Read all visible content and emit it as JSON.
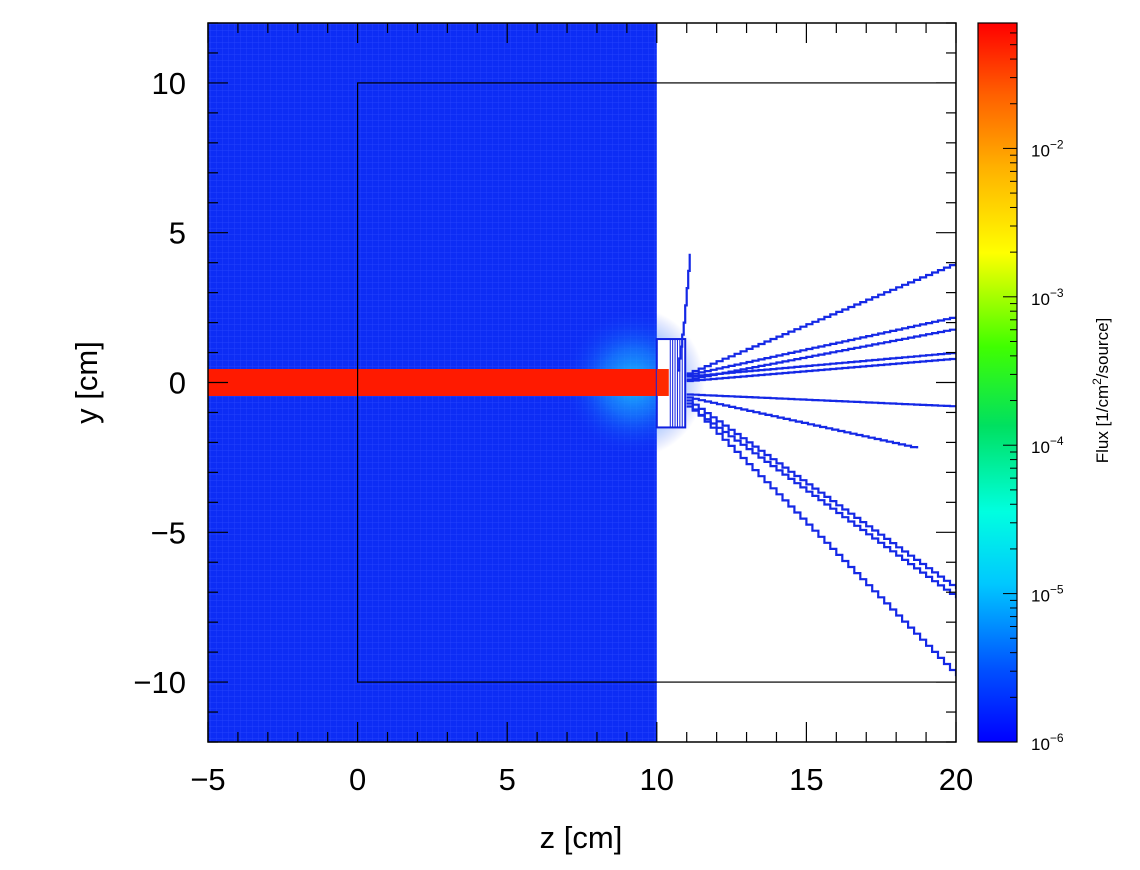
{
  "chart_data": {
    "type": "heatmap",
    "title": "",
    "xlabel": "z [cm]",
    "ylabel": "y [cm]",
    "xlim": [
      -5,
      20
    ],
    "ylim": [
      -12,
      12
    ],
    "x_ticks": [
      {
        "value": -5,
        "label": "−5"
      },
      {
        "value": 0,
        "label": "0"
      },
      {
        "value": 5,
        "label": "5"
      },
      {
        "value": 10,
        "label": "10"
      },
      {
        "value": 15,
        "label": "15"
      },
      {
        "value": 20,
        "label": "20"
      }
    ],
    "y_ticks": [
      {
        "value": 10,
        "label": "10"
      },
      {
        "value": 5,
        "label": "5"
      },
      {
        "value": 0,
        "label": "0"
      },
      {
        "value": -5,
        "label": "−5"
      },
      {
        "value": -10,
        "label": "−10"
      }
    ],
    "colorbar": {
      "title": "Flux [1/cm² /source]",
      "title_base": "Flux [1/cm",
      "title_sup": "2",
      "title_end": "/source]",
      "scale": "log",
      "range": [
        1e-06,
        0.07
      ],
      "ticks": [
        {
          "exponent": -2,
          "base": "10",
          "sup": "−2"
        },
        {
          "exponent": -3,
          "base": "10",
          "sup": "−3"
        },
        {
          "exponent": -4,
          "base": "10",
          "sup": "−4"
        },
        {
          "exponent": -5,
          "base": "10",
          "sup": "−5"
        },
        {
          "exponent": -6,
          "base": "10",
          "sup": "−6"
        }
      ]
    },
    "background_region": {
      "z": [
        -5,
        10
      ],
      "y": [
        -12,
        12
      ],
      "level": "1e-6",
      "color": "#0d2df5"
    },
    "beam": {
      "z": [
        -5,
        10.4
      ],
      "y": [
        -0.45,
        0.45
      ],
      "level": "7e-2",
      "color": "#ff1a00"
    },
    "geometry_box": {
      "z": [
        0,
        20
      ],
      "y": [
        -10,
        10
      ]
    },
    "target": {
      "z": [
        10,
        10.95
      ],
      "y": [
        -1.5,
        1.45
      ]
    },
    "secondary_tracks": [
      {
        "points": [
          [
            10.7,
            0.4
          ],
          [
            10.9,
            2.0
          ],
          [
            11.1,
            4.3
          ]
        ]
      },
      {
        "points": [
          [
            11.0,
            0.3
          ],
          [
            20,
            4.0
          ]
        ]
      },
      {
        "points": [
          [
            11.0,
            0.25
          ],
          [
            20,
            2.2
          ]
        ]
      },
      {
        "points": [
          [
            11.0,
            0.1
          ],
          [
            20,
            1.8
          ]
        ]
      },
      {
        "points": [
          [
            11.0,
            0.2
          ],
          [
            20,
            1.0
          ]
        ]
      },
      {
        "points": [
          [
            11.0,
            0.05
          ],
          [
            20,
            0.8
          ]
        ]
      },
      {
        "points": [
          [
            11.0,
            -0.4
          ],
          [
            20,
            -0.8
          ]
        ]
      },
      {
        "points": [
          [
            11.0,
            -0.5
          ],
          [
            18.7,
            -2.2
          ]
        ]
      },
      {
        "points": [
          [
            11.0,
            -0.6
          ],
          [
            20,
            -6.9
          ]
        ]
      },
      {
        "points": [
          [
            11.0,
            -0.7
          ],
          [
            20,
            -9.8
          ]
        ]
      },
      {
        "points": [
          [
            11.0,
            -0.8
          ],
          [
            20,
            -7.2
          ]
        ]
      }
    ]
  }
}
